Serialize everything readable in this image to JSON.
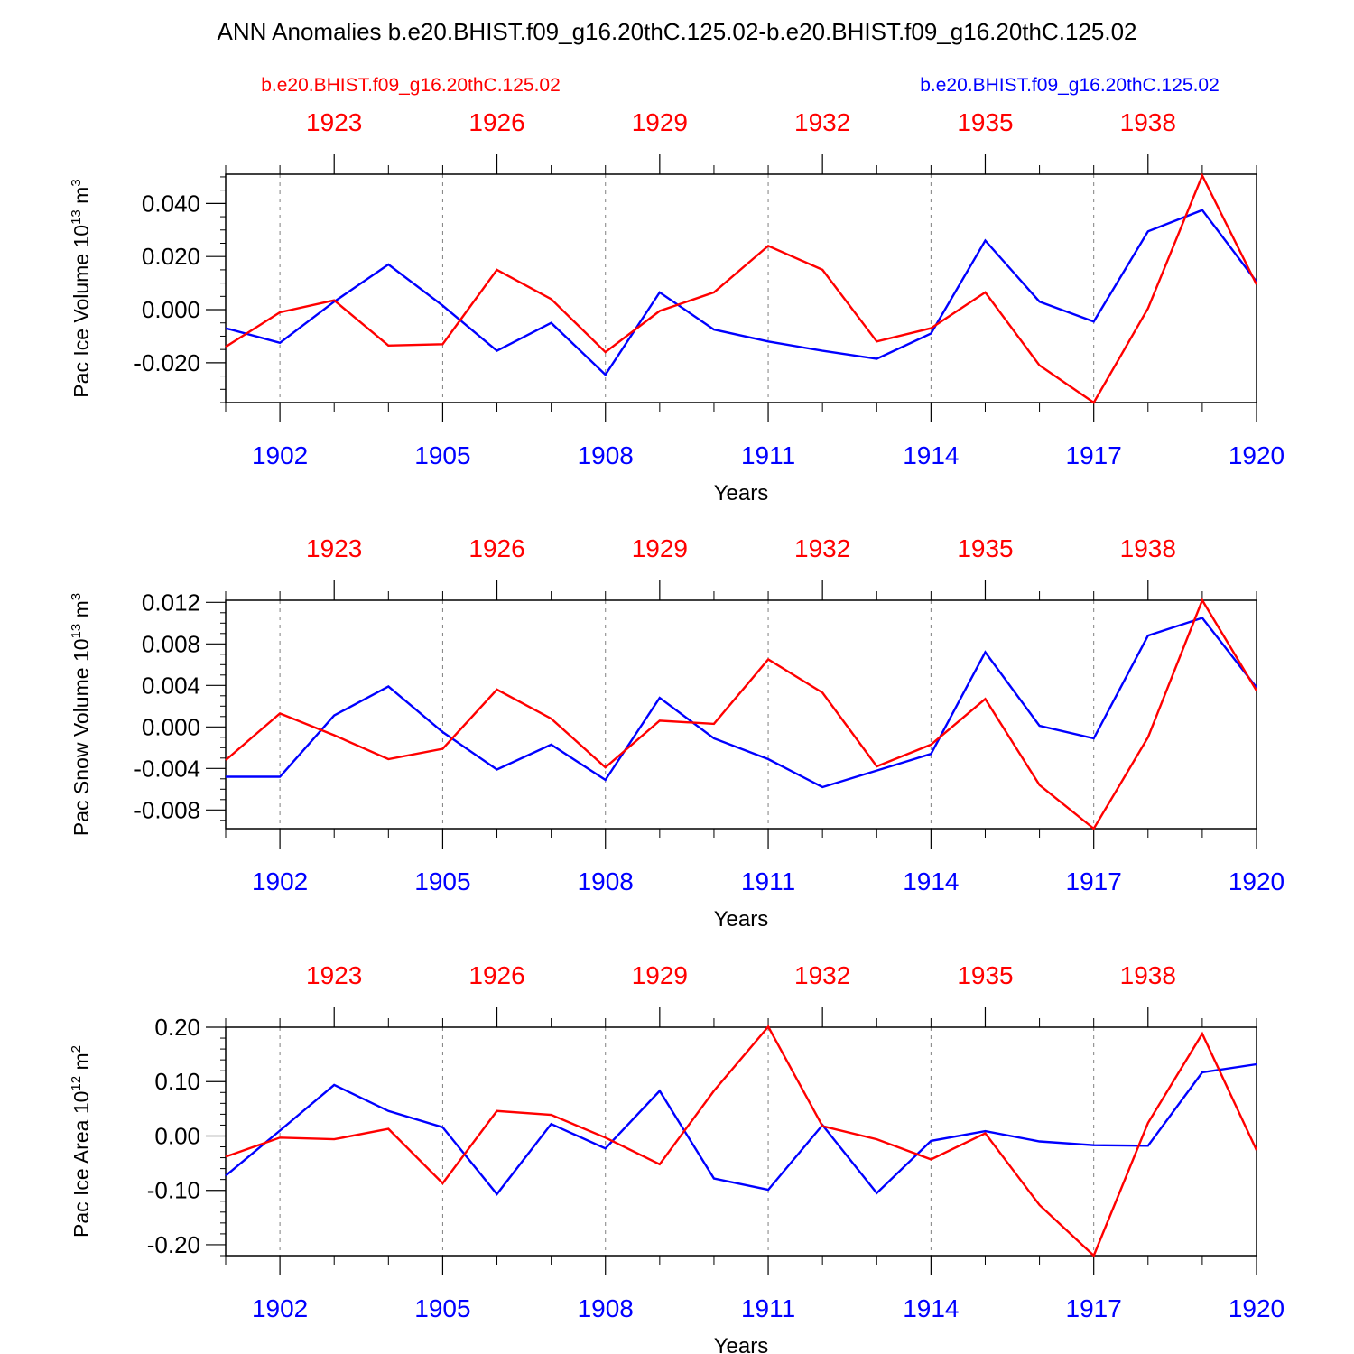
{
  "title": "ANN Anomalies b.e20.BHIST.f09_g16.20thC.125.02-b.e20.BHIST.f09_g16.20thC.125.02",
  "legend": {
    "left_label": "b.e20.BHIST.f09_g16.20thC.125.02",
    "right_label": "b.e20.BHIST.f09_g16.20thC.125.02"
  },
  "colors": {
    "red": "#ff0000",
    "blue": "#0000ff",
    "axis": "#000000",
    "grid": "#808080"
  },
  "chart_data": [
    {
      "type": "line",
      "ylabel_main": "Pac Ice Volume 10",
      "ylabel_exp": "13",
      "ylabel_unit": " m",
      "ylabel_unit_exp": "3",
      "xlabel": "Years",
      "xlim": [
        1901,
        1920
      ],
      "ylim": [
        -0.035,
        0.051
      ],
      "yticks": [
        -0.02,
        0.0,
        0.02,
        0.04
      ],
      "ytick_labels": [
        "-0.020",
        "0.000",
        "0.020",
        "0.040"
      ],
      "yminor_step": 0.005,
      "bottom_ticks": [
        1902,
        1905,
        1908,
        1911,
        1914,
        1917,
        1920
      ],
      "bottom_tick_labels": [
        "1902",
        "1905",
        "1908",
        "1911",
        "1914",
        "1917",
        "1920"
      ],
      "top_ticks": [
        1903,
        1906,
        1909,
        1912,
        1915,
        1918
      ],
      "top_tick_labels": [
        "1923",
        "1926",
        "1929",
        "1932",
        "1935",
        "1938"
      ],
      "x": [
        1901,
        1902,
        1903,
        1904,
        1905,
        1906,
        1907,
        1908,
        1909,
        1910,
        1911,
        1912,
        1913,
        1914,
        1915,
        1916,
        1917,
        1918,
        1919,
        1920
      ],
      "series": [
        {
          "name": "b.e20.BHIST.f09_g16.20thC.125.02 (red)",
          "color": "red",
          "values": [
            -0.014,
            -0.001,
            0.0035,
            -0.0135,
            -0.013,
            0.015,
            0.004,
            -0.016,
            -0.0005,
            0.0065,
            0.024,
            0.015,
            -0.012,
            -0.007,
            0.0065,
            -0.021,
            -0.035,
            0.0005,
            0.0505,
            0.0095
          ]
        },
        {
          "name": "b.e20.BHIST.f09_g16.20thC.125.02 (blue)",
          "color": "blue",
          "values": [
            -0.007,
            -0.0125,
            0.003,
            0.017,
            0.0015,
            -0.0155,
            -0.005,
            -0.0245,
            0.0065,
            -0.0075,
            -0.012,
            -0.0155,
            -0.0185,
            -0.009,
            0.026,
            0.003,
            -0.0045,
            0.0295,
            0.0375,
            0.0105
          ]
        }
      ]
    },
    {
      "type": "line",
      "ylabel_main": "Pac Snow Volume 10",
      "ylabel_exp": "13",
      "ylabel_unit": " m",
      "ylabel_unit_exp": "3",
      "xlabel": "Years",
      "xlim": [
        1901,
        1920
      ],
      "ylim": [
        -0.0098,
        0.0122
      ],
      "yticks": [
        -0.008,
        -0.004,
        0.0,
        0.004,
        0.008,
        0.012
      ],
      "ytick_labels": [
        "-0.008",
        "-0.004",
        "0.000",
        "0.004",
        "0.008",
        "0.012"
      ],
      "yminor_step": 0.001,
      "bottom_ticks": [
        1902,
        1905,
        1908,
        1911,
        1914,
        1917,
        1920
      ],
      "bottom_tick_labels": [
        "1902",
        "1905",
        "1908",
        "1911",
        "1914",
        "1917",
        "1920"
      ],
      "top_ticks": [
        1903,
        1906,
        1909,
        1912,
        1915,
        1918
      ],
      "top_tick_labels": [
        "1923",
        "1926",
        "1929",
        "1932",
        "1935",
        "1938"
      ],
      "x": [
        1901,
        1902,
        1903,
        1904,
        1905,
        1906,
        1907,
        1908,
        1909,
        1910,
        1911,
        1912,
        1913,
        1914,
        1915,
        1916,
        1917,
        1918,
        1919,
        1920
      ],
      "series": [
        {
          "name": "b.e20.BHIST.f09_g16.20thC.125.02 (red)",
          "color": "red",
          "values": [
            -0.0032,
            0.0013,
            -0.0008,
            -0.0031,
            -0.0021,
            0.0036,
            0.0008,
            -0.0039,
            0.0006,
            0.0003,
            0.0065,
            0.0033,
            -0.0038,
            -0.0017,
            0.0027,
            -0.0056,
            -0.0098,
            -0.001,
            0.0122,
            0.0035
          ]
        },
        {
          "name": "b.e20.BHIST.f09_g16.20thC.125.02 (blue)",
          "color": "blue",
          "values": [
            -0.0048,
            -0.0048,
            0.0011,
            0.0039,
            -0.0005,
            -0.0041,
            -0.0017,
            -0.0051,
            0.0028,
            -0.0011,
            -0.0031,
            -0.0058,
            -0.0042,
            -0.0026,
            0.0072,
            0.0001,
            -0.0011,
            0.0088,
            0.0105,
            0.0038
          ]
        }
      ]
    },
    {
      "type": "line",
      "ylabel_main": "Pac Ice Area 10",
      "ylabel_exp": "12",
      "ylabel_unit": " m",
      "ylabel_unit_exp": "2",
      "xlabel": "Years",
      "xlim": [
        1901,
        1920
      ],
      "ylim": [
        -0.22,
        0.2
      ],
      "yticks": [
        -0.2,
        -0.1,
        0.0,
        0.1,
        0.2
      ],
      "ytick_labels": [
        "-0.20",
        "-0.10",
        "0.00",
        "0.10",
        "0.20"
      ],
      "yminor_step": 0.02,
      "bottom_ticks": [
        1902,
        1905,
        1908,
        1911,
        1914,
        1917,
        1920
      ],
      "bottom_tick_labels": [
        "1902",
        "1905",
        "1908",
        "1911",
        "1914",
        "1917",
        "1920"
      ],
      "top_ticks": [
        1903,
        1906,
        1909,
        1912,
        1915,
        1918
      ],
      "top_tick_labels": [
        "1923",
        "1926",
        "1929",
        "1932",
        "1935",
        "1938"
      ],
      "x": [
        1901,
        1902,
        1903,
        1904,
        1905,
        1906,
        1907,
        1908,
        1909,
        1910,
        1911,
        1912,
        1913,
        1914,
        1915,
        1916,
        1917,
        1918,
        1919,
        1920
      ],
      "series": [
        {
          "name": "b.e20.BHIST.f09_g16.20thC.125.02 (red)",
          "color": "red",
          "values": [
            -0.038,
            -0.003,
            -0.006,
            0.013,
            -0.087,
            0.046,
            0.039,
            -0.003,
            -0.052,
            0.083,
            0.201,
            0.018,
            -0.006,
            -0.043,
            0.005,
            -0.127,
            -0.22,
            0.024,
            0.188,
            -0.026
          ]
        },
        {
          "name": "b.e20.BHIST.f09_g16.20thC.125.02 (blue)",
          "color": "blue",
          "values": [
            -0.073,
            0.01,
            0.094,
            0.046,
            0.016,
            -0.107,
            0.022,
            -0.023,
            0.083,
            -0.078,
            -0.099,
            0.02,
            -0.105,
            -0.009,
            0.009,
            -0.01,
            -0.017,
            -0.018,
            0.117,
            0.132
          ]
        }
      ]
    }
  ]
}
